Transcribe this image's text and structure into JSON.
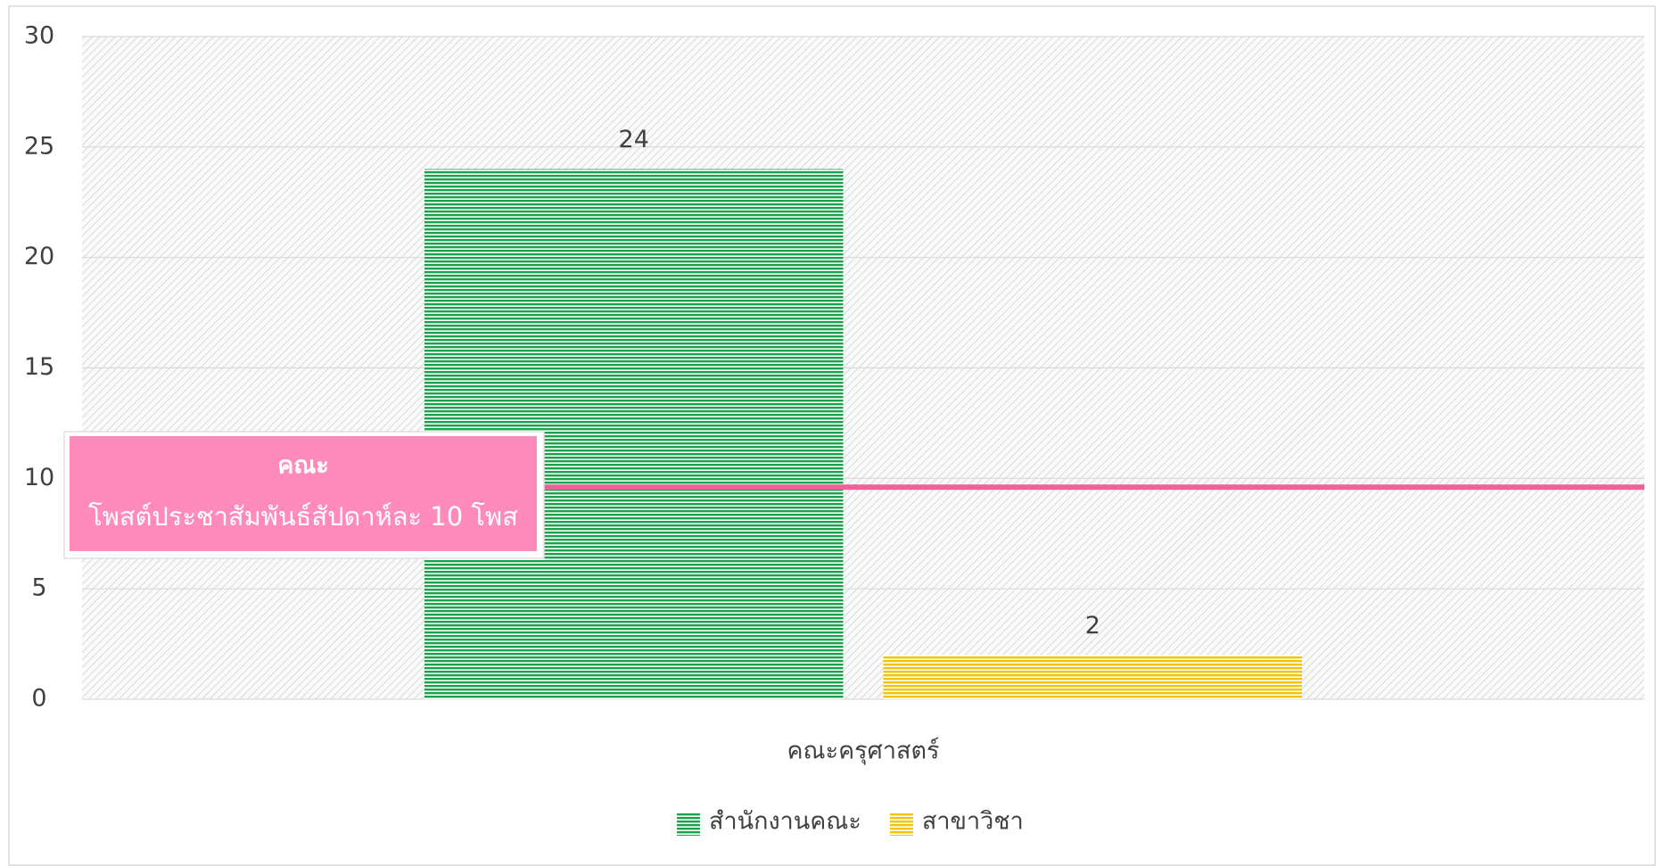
{
  "chart_data": {
    "type": "bar",
    "categories": [
      "คณะครุศาสตร์"
    ],
    "series": [
      {
        "name": "สำนักงานคณะ",
        "color": "#1aa34a",
        "values": [
          24
        ]
      },
      {
        "name": "สาขาวิชา",
        "color": "#f2c500",
        "values": [
          2
        ]
      }
    ],
    "ylim": [
      0,
      30
    ],
    "yticks": [
      0,
      5,
      10,
      15,
      20,
      25,
      30
    ],
    "grid": true,
    "reference_line": {
      "value": 9.6,
      "color": "#f0609a"
    },
    "annotation": {
      "title": "คณะ",
      "text": "โพสต์ประชาสัมพันธ์สัปดาห์ละ 10 โพส"
    },
    "legend": "bottom"
  }
}
